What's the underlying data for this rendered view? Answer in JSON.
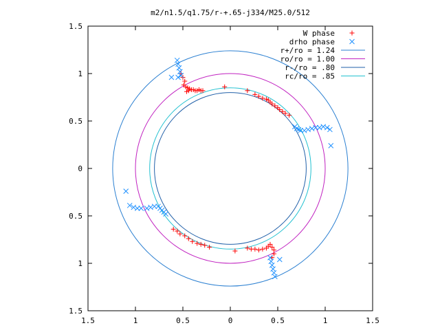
{
  "chart_data": {
    "type": "scatter",
    "title": "m2/n1.5/q1.75/r-+.65-j334/M25.0/512",
    "xlim": [
      -1.5,
      1.5
    ],
    "ylim": [
      -1.5,
      1.5
    ],
    "x_tick_labels": [
      "1.5",
      "1",
      "0.5",
      "0",
      "0.5",
      "1",
      "1.5"
    ],
    "y_tick_labels": [
      "1.5",
      "1",
      "0.5",
      "0",
      "0.5",
      "1",
      "1.5"
    ],
    "grid": false,
    "legend_position": "top-right",
    "colors": {
      "w_phase": "#ff0000",
      "drho_phase": "#1e90ff",
      "r_plus": "#2a7fd1",
      "ro": "#c020c0",
      "r_minus": "#1f5fa8",
      "rc": "#20c0d0"
    },
    "circles": [
      {
        "label": "r+/ro = 1.24",
        "r": 1.24,
        "color_key": "r_plus"
      },
      {
        "label": "ro/ro = 1.00",
        "r": 1.0,
        "color_key": "ro"
      },
      {
        "label": "r-/ro = .80",
        "r": 0.8,
        "color_key": "r_minus"
      },
      {
        "label": "rc/ro = .85",
        "r": 0.85,
        "color_key": "rc"
      }
    ],
    "series": [
      {
        "name": "W phase",
        "marker": "plus",
        "points": [
          [
            -0.52,
            1.0
          ],
          [
            -0.5,
            0.96
          ],
          [
            -0.48,
            0.92
          ],
          [
            -0.49,
            0.88
          ],
          [
            -0.47,
            0.86
          ],
          [
            -0.45,
            0.85
          ],
          [
            -0.43,
            0.84
          ],
          [
            -0.41,
            0.83
          ],
          [
            -0.39,
            0.83
          ],
          [
            -0.37,
            0.82
          ],
          [
            -0.35,
            0.82
          ],
          [
            -0.33,
            0.83
          ],
          [
            -0.31,
            0.82
          ],
          [
            -0.29,
            0.82
          ],
          [
            -0.46,
            0.81
          ],
          [
            -0.44,
            0.82
          ],
          [
            -0.06,
            0.86
          ],
          [
            0.18,
            0.82
          ],
          [
            0.26,
            0.78
          ],
          [
            0.3,
            0.76
          ],
          [
            0.34,
            0.74
          ],
          [
            0.38,
            0.73
          ],
          [
            0.4,
            0.72
          ],
          [
            0.42,
            0.7
          ],
          [
            0.44,
            0.68
          ],
          [
            0.47,
            0.66
          ],
          [
            0.5,
            0.64
          ],
          [
            0.52,
            0.62
          ],
          [
            0.55,
            0.6
          ],
          [
            0.58,
            0.58
          ],
          [
            0.62,
            0.56
          ],
          [
            -0.6,
            -0.64
          ],
          [
            -0.56,
            -0.66
          ],
          [
            -0.53,
            -0.69
          ],
          [
            -0.48,
            -0.71
          ],
          [
            -0.44,
            -0.74
          ],
          [
            -0.4,
            -0.77
          ],
          [
            -0.35,
            -0.79
          ],
          [
            -0.31,
            -0.8
          ],
          [
            -0.27,
            -0.81
          ],
          [
            -0.22,
            -0.83
          ],
          [
            0.05,
            -0.87
          ],
          [
            0.18,
            -0.84
          ],
          [
            0.22,
            -0.85
          ],
          [
            0.26,
            -0.85
          ],
          [
            0.3,
            -0.86
          ],
          [
            0.34,
            -0.85
          ],
          [
            0.38,
            -0.84
          ],
          [
            0.4,
            -0.82
          ],
          [
            0.42,
            -0.8
          ],
          [
            0.44,
            -0.83
          ],
          [
            0.46,
            -0.86
          ],
          [
            0.46,
            -0.9
          ],
          [
            0.44,
            -0.94
          ]
        ]
      },
      {
        "name": "drho phase",
        "marker": "cross",
        "points": [
          [
            -0.56,
            1.14
          ],
          [
            -0.55,
            1.1
          ],
          [
            -0.54,
            1.06
          ],
          [
            -0.53,
            1.02
          ],
          [
            -0.52,
            0.98
          ],
          [
            -0.55,
            0.96
          ],
          [
            -0.62,
            0.96
          ],
          [
            0.68,
            0.44
          ],
          [
            0.7,
            0.42
          ],
          [
            0.72,
            0.41
          ],
          [
            0.74,
            0.4
          ],
          [
            0.78,
            0.4
          ],
          [
            0.82,
            0.41
          ],
          [
            0.86,
            0.42
          ],
          [
            0.9,
            0.43
          ],
          [
            0.94,
            0.43
          ],
          [
            0.98,
            0.44
          ],
          [
            1.02,
            0.43
          ],
          [
            1.05,
            0.41
          ],
          [
            1.06,
            0.24
          ],
          [
            -1.1,
            -0.24
          ],
          [
            -1.06,
            -0.39
          ],
          [
            -1.02,
            -0.41
          ],
          [
            -0.98,
            -0.42
          ],
          [
            -0.94,
            -0.42
          ],
          [
            -0.88,
            -0.42
          ],
          [
            -0.84,
            -0.41
          ],
          [
            -0.8,
            -0.4
          ],
          [
            -0.76,
            -0.4
          ],
          [
            -0.74,
            -0.42
          ],
          [
            -0.72,
            -0.44
          ],
          [
            -0.7,
            -0.46
          ],
          [
            -0.68,
            -0.48
          ],
          [
            0.42,
            -0.94
          ],
          [
            0.43,
            -0.98
          ],
          [
            0.44,
            -1.02
          ],
          [
            0.45,
            -1.06
          ],
          [
            0.46,
            -1.1
          ],
          [
            0.47,
            -1.14
          ],
          [
            0.52,
            -0.96
          ]
        ]
      }
    ]
  }
}
